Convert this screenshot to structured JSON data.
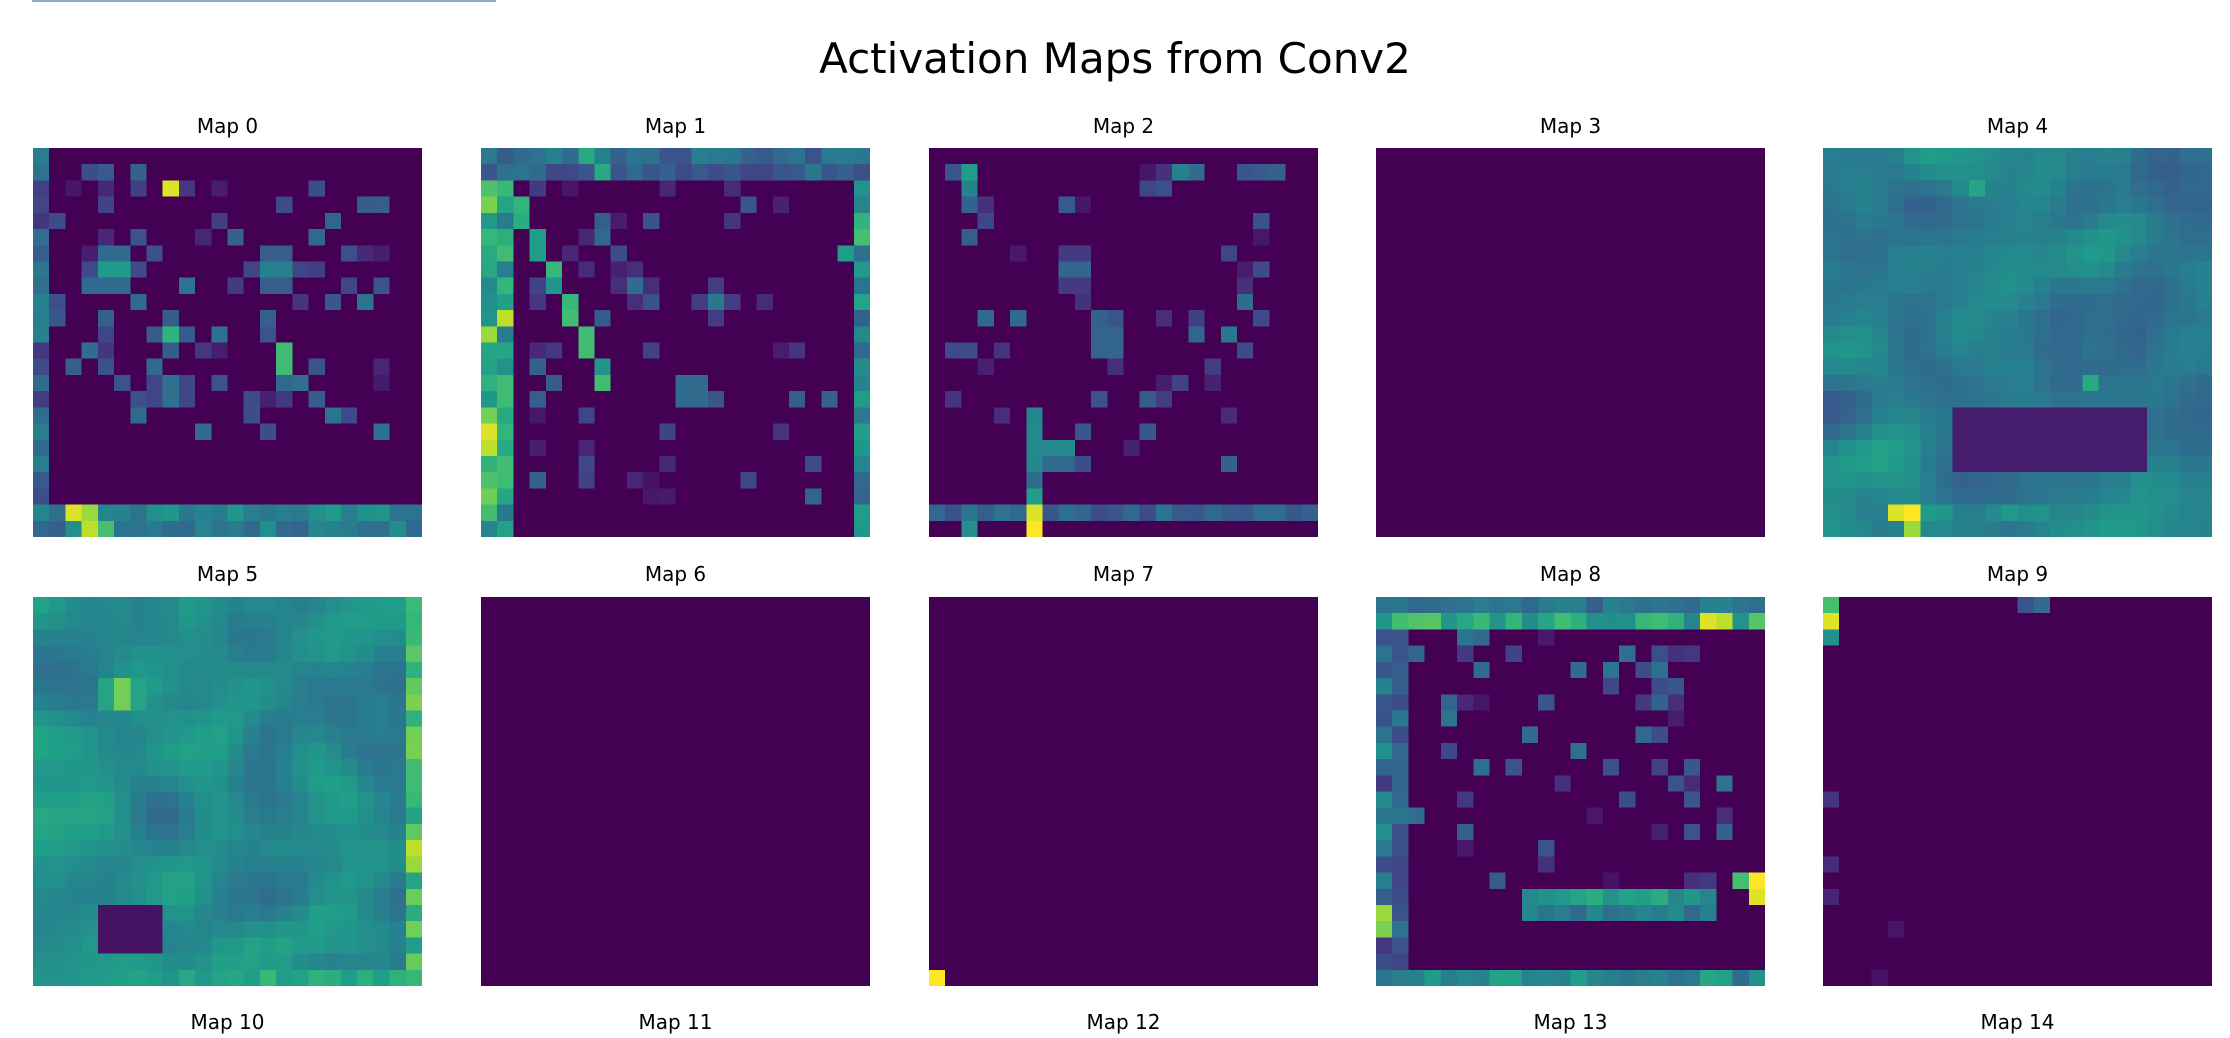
{
  "chart_data": {
    "type": "heatmap",
    "title": "Activation Maps from Conv2",
    "colormap": "viridis",
    "maps": [
      {
        "label": "Map 0",
        "pattern": "sparse-blobs-bottom-bar"
      },
      {
        "label": "Map 1",
        "pattern": "edges-left-right-top"
      },
      {
        "label": "Map 2",
        "pattern": "sparse-lines-bottom-bar"
      },
      {
        "label": "Map 3",
        "pattern": "uniform-zero"
      },
      {
        "label": "Map 4",
        "pattern": "dense-texture"
      },
      {
        "label": "Map 5",
        "pattern": "dense-texture-hot-upper-left"
      },
      {
        "label": "Map 6",
        "pattern": "uniform-zero"
      },
      {
        "label": "Map 7",
        "pattern": "zero-with-bottom-left-hot-pixel"
      },
      {
        "label": "Map 8",
        "pattern": "edges-top-bottom-with-lines"
      },
      {
        "label": "Map 9",
        "pattern": "near-zero-left-edge-specks"
      },
      {
        "label": "Map 10",
        "pattern": "panel-not-visible"
      },
      {
        "label": "Map 11",
        "pattern": "panel-not-visible"
      },
      {
        "label": "Map 12",
        "pattern": "panel-not-visible"
      },
      {
        "label": "Map 13",
        "pattern": "panel-not-visible"
      },
      {
        "label": "Map 14",
        "pattern": "panel-not-visible"
      }
    ]
  }
}
